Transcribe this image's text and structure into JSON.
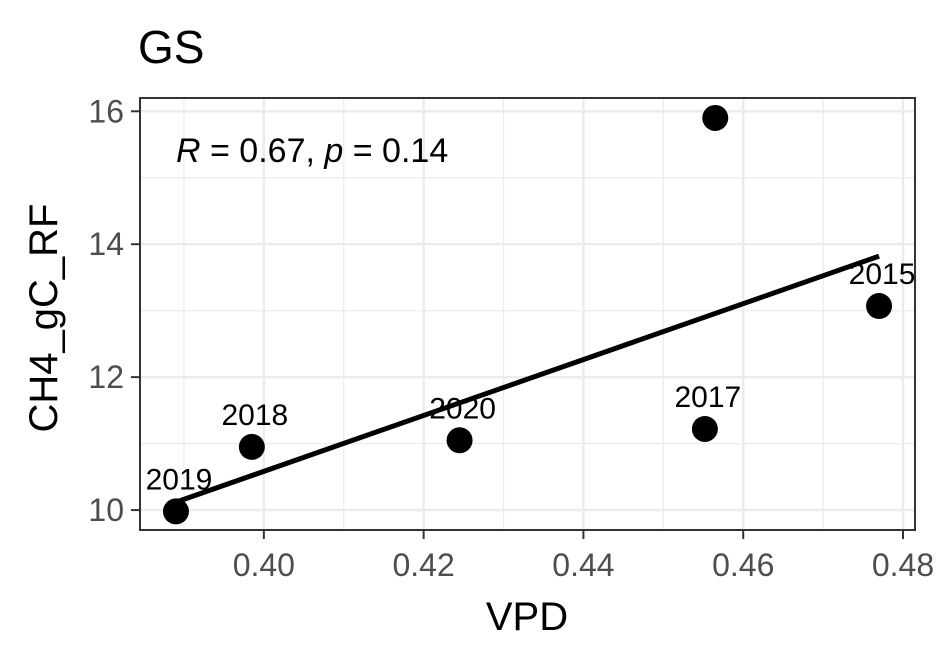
{
  "chart_data": {
    "type": "scatter",
    "title": "GS",
    "xlabel": "VPD",
    "ylabel": "CH4_gC_RF",
    "xlim": [
      0.3845,
      0.4815
    ],
    "ylim": [
      9.7,
      16.2
    ],
    "x_ticks": [
      0.4,
      0.42,
      0.44,
      0.46,
      0.48
    ],
    "x_tick_labels": [
      "0.40",
      "0.42",
      "0.44",
      "0.46",
      "0.48"
    ],
    "y_ticks": [
      10,
      12,
      14,
      16
    ],
    "y_tick_labels": [
      "10",
      "12",
      "14",
      "16"
    ],
    "grid": true,
    "points": [
      {
        "x": 0.389,
        "y": 9.98,
        "label": "2019"
      },
      {
        "x": 0.3985,
        "y": 10.95,
        "label": "2018"
      },
      {
        "x": 0.4245,
        "y": 11.05,
        "label": "2020"
      },
      {
        "x": 0.4552,
        "y": 11.22,
        "label": "2017"
      },
      {
        "x": 0.4565,
        "y": 15.9,
        "label": ""
      },
      {
        "x": 0.477,
        "y": 13.07,
        "label": "2015"
      }
    ],
    "fit_line": {
      "x": [
        0.389,
        0.477
      ],
      "y": [
        10.12,
        13.82
      ]
    },
    "annotation": {
      "r_symbol": "R",
      "r_text": " = 0.67, ",
      "p_symbol": "p",
      "p_text": " = 0.14"
    }
  }
}
